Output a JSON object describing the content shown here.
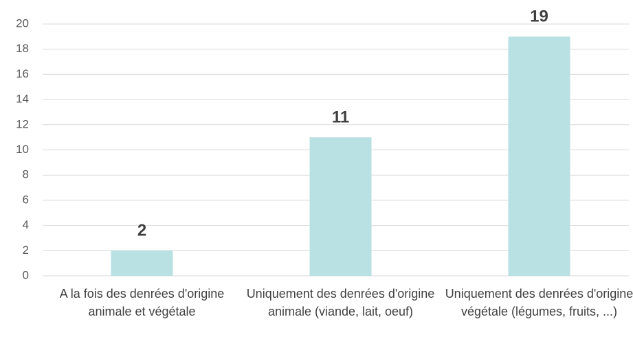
{
  "chart_data": {
    "type": "bar",
    "categories": [
      "A la fois des denrées d'origine animale et végétale",
      "Uniquement des denrées d'origine animale (viande, lait, oeuf)",
      "Uniquement des denrées d'origine végétale (légumes, fruits, ...)"
    ],
    "values": [
      2,
      11,
      19
    ],
    "color": "#b9e0e3",
    "ylim": [
      0,
      20
    ],
    "yticks": [
      0,
      2,
      4,
      6,
      8,
      10,
      12,
      14,
      16,
      18,
      20
    ],
    "grid": true
  }
}
